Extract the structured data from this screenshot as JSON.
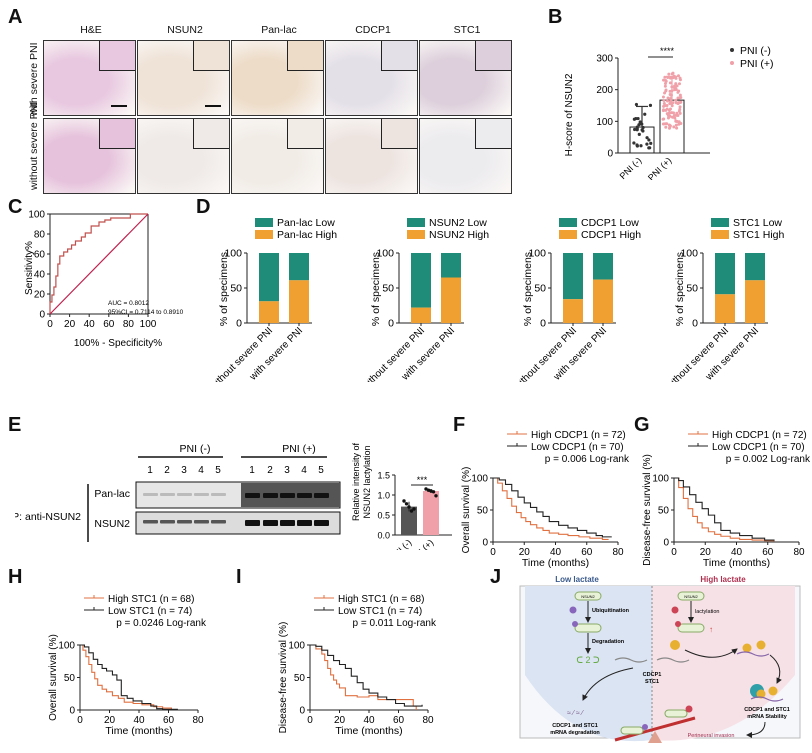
{
  "panels": {
    "A": {
      "letter": "A",
      "columns": [
        "H&E",
        "NSUN2",
        "Pan-lac",
        "CDCP1",
        "STC1"
      ],
      "rows": [
        "with severe PNI",
        "without severe PNI"
      ],
      "colors": {
        "he_row1": "#e8c8e0",
        "he_row2": "#e6c2dc",
        "ihc_row1": [
          "#efe2d6",
          "#eddcc8",
          "#e4e0e8",
          "#ddd0dc"
        ],
        "ihc_row2": [
          "#efeae8",
          "#f1ece6",
          "#ede4e0",
          "#ecebee"
        ]
      }
    },
    "B": {
      "letter": "B",
      "ylabel": "H-score of NSUN2",
      "significance": "****",
      "legend": [
        "PNI (-)",
        "PNI (+)"
      ]
    },
    "C": {
      "letter": "C",
      "ylabel": "Sensitivity%",
      "xlabel": "100% - Specificity%",
      "auc_text": "AUC = 0.8012",
      "ci_text": "95%CI = 0.7114 to 0.8910"
    },
    "D": {
      "letter": "D",
      "ylabel": "% of specimens"
    },
    "E": {
      "letter": "E",
      "group_neg": "PNI (-)",
      "group_pos": "PNI (+)",
      "lanes": [
        "1",
        "2",
        "3",
        "4",
        "5"
      ],
      "ip_label": "IP: anti-NSUN2",
      "row_labels": [
        "Pan-lac",
        "NSUN2"
      ],
      "bar_ylabel": [
        "Relative intensity of",
        "NSUN2 lactylation"
      ],
      "significance": "***"
    },
    "F": {
      "letter": "F",
      "ylabel": "Overall survival (%)",
      "xlabel": "Time (months)"
    },
    "G": {
      "letter": "G",
      "ylabel": "Disease-free survival (%)",
      "xlabel": "Time (months)"
    },
    "H": {
      "letter": "H",
      "ylabel": "Overall survival (%)",
      "xlabel": "Time (months)"
    },
    "I": {
      "letter": "I",
      "ylabel": "Disease-free survival (%)",
      "xlabel": "Time (months)"
    },
    "J": {
      "letter": "J",
      "left_title": "Low lactate",
      "right_title": "High lactate",
      "labels": {
        "nsun2": "NSUN2",
        "ubiquitination": "Ubiquitination",
        "degradation": "Degradation",
        "lactylation": "lactylation",
        "target": [
          "CDCP1",
          "STC1"
        ],
        "mrna_degradation": [
          "CDCP1 and STC1",
          "mRNA degradation"
        ],
        "mrna_stability": [
          "CDCP1 and STC1",
          "mRNA Stability"
        ],
        "perineural": "Perineural invasion"
      }
    }
  },
  "chart_data": [
    {
      "id": "B",
      "type": "bar",
      "title": "",
      "categories": [
        "PNI (-)",
        "PNI (+)"
      ],
      "values": [
        82,
        167
      ],
      "sd": [
        65,
        75
      ],
      "ylabel": "H-score of NSUN2",
      "ylim": [
        0,
        300
      ],
      "yticks": [
        0,
        100,
        200,
        300
      ],
      "colors": [
        "#333333",
        "#f0a0a8"
      ],
      "annotation": "****",
      "legend": [
        "PNI (-)",
        "PNI (+)"
      ],
      "legend_position": "top-right"
    },
    {
      "id": "C",
      "type": "line",
      "title": "",
      "xlabel": "100% - Specificity%",
      "ylabel": "Sensitivity%",
      "xlim": [
        0,
        100
      ],
      "ylim": [
        0,
        100
      ],
      "xticks": [
        0,
        20,
        40,
        60,
        80,
        100
      ],
      "yticks": [
        0,
        20,
        40,
        60,
        80,
        100
      ],
      "series": [
        {
          "name": "ROC",
          "x": [
            0,
            0,
            2,
            2,
            4,
            4,
            6,
            6,
            8,
            8,
            10,
            10,
            14,
            14,
            18,
            18,
            22,
            22,
            26,
            26,
            32,
            32,
            36,
            36,
            42,
            42,
            50,
            50,
            56,
            56,
            62,
            62,
            82,
            82,
            100
          ],
          "y": [
            0,
            12,
            12,
            19,
            19,
            27,
            27,
            38,
            38,
            50,
            50,
            58,
            58,
            62,
            62,
            65,
            65,
            69,
            69,
            73,
            73,
            77,
            77,
            81,
            81,
            88,
            88,
            92,
            92,
            94,
            94,
            96,
            96,
            100,
            100
          ],
          "color": "#c0504d"
        },
        {
          "name": "reference",
          "x": [
            0,
            100
          ],
          "y": [
            0,
            100
          ],
          "color": "#c0204d"
        }
      ],
      "annotations": [
        "AUC = 0.8012",
        "95%CI = 0.7114 to 0.8910"
      ]
    },
    {
      "id": "D1",
      "type": "bar",
      "stacked": true,
      "categories": [
        "without severe PNI",
        "with severe PNI"
      ],
      "series": [
        {
          "name": "Pan-lac High",
          "values": [
            31,
            61
          ],
          "color": "#f0a030"
        },
        {
          "name": "Pan-lac Low",
          "values": [
            69,
            39
          ],
          "color": "#1e8c78"
        }
      ],
      "ylabel": "% of specimens",
      "ylim": [
        0,
        100
      ],
      "yticks": [
        0,
        50,
        100
      ],
      "legend": [
        "Pan-lac Low",
        "Pan-lac High"
      ],
      "legend_position": "top"
    },
    {
      "id": "D2",
      "type": "bar",
      "stacked": true,
      "categories": [
        "without severe PNI",
        "with severe PNI"
      ],
      "series": [
        {
          "name": "NSUN2 High",
          "values": [
            22,
            65
          ],
          "color": "#f0a030"
        },
        {
          "name": "NSUN2 Low",
          "values": [
            78,
            35
          ],
          "color": "#1e8c78"
        }
      ],
      "ylabel": "% of specimens",
      "ylim": [
        0,
        100
      ],
      "yticks": [
        0,
        50,
        100
      ],
      "legend": [
        "NSUN2 Low",
        "NSUN2 High"
      ],
      "legend_position": "top"
    },
    {
      "id": "D3",
      "type": "bar",
      "stacked": true,
      "categories": [
        "without severe PNI",
        "with severe PNI"
      ],
      "series": [
        {
          "name": "CDCP1 High",
          "values": [
            34,
            62
          ],
          "color": "#f0a030"
        },
        {
          "name": "CDCP1 Low",
          "values": [
            66,
            38
          ],
          "color": "#1e8c78"
        }
      ],
      "ylabel": "% of specimens",
      "ylim": [
        0,
        100
      ],
      "yticks": [
        0,
        50,
        100
      ],
      "legend": [
        "CDCP1 Low",
        "CDCP1 High"
      ],
      "legend_position": "top"
    },
    {
      "id": "D4",
      "type": "bar",
      "stacked": true,
      "categories": [
        "without severe PNI",
        "with severe PNI"
      ],
      "series": [
        {
          "name": "STC1 High",
          "values": [
            41,
            61
          ],
          "color": "#f0a030"
        },
        {
          "name": "STC1 Low",
          "values": [
            59,
            39
          ],
          "color": "#1e8c78"
        }
      ],
      "ylabel": "% of specimens",
      "ylim": [
        0,
        100
      ],
      "yticks": [
        0,
        50,
        100
      ],
      "legend": [
        "STC1 Low",
        "STC1 High"
      ],
      "legend_position": "top"
    },
    {
      "id": "E",
      "type": "bar",
      "categories": [
        "PNI (-)",
        "PNI (+)"
      ],
      "values": [
        0.71,
        1.1
      ],
      "sd": [
        0.12,
        0.05
      ],
      "points": [
        [
          0.85,
          0.78,
          0.7,
          0.6,
          0.65
        ],
        [
          1.15,
          1.12,
          1.1,
          1.08,
          0.98
        ]
      ],
      "ylabel": "Relative intensity of NSUN2 lactylation",
      "ylim": [
        0,
        1.5
      ],
      "yticks": [
        0.0,
        0.5,
        1.0,
        1.5
      ],
      "colors": [
        "#555555",
        "#f0a0a8"
      ],
      "annotation": "***"
    },
    {
      "id": "F",
      "type": "line",
      "xlabel": "Time (months)",
      "ylabel": "Overall survival (%)",
      "xlim": [
        0,
        80
      ],
      "ylim": [
        0,
        100
      ],
      "xticks": [
        0,
        20,
        40,
        60,
        80
      ],
      "yticks": [
        0,
        50,
        100
      ],
      "series": [
        {
          "name": "High CDCP1 (n = 72)",
          "color": "#e07040",
          "x": [
            0,
            3,
            6,
            9,
            12,
            15,
            18,
            21,
            24,
            28,
            32,
            36,
            42,
            48,
            55,
            62,
            70,
            74
          ],
          "y": [
            100,
            92,
            80,
            68,
            56,
            46,
            38,
            32,
            27,
            22,
            18,
            14,
            12,
            10,
            8,
            6,
            4,
            4
          ]
        },
        {
          "name": "Low CDCP1 (n = 70)",
          "color": "#222222",
          "x": [
            0,
            4,
            8,
            12,
            16,
            20,
            24,
            28,
            32,
            36,
            42,
            48,
            54,
            60,
            66,
            70,
            76
          ],
          "y": [
            100,
            97,
            90,
            80,
            70,
            61,
            54,
            47,
            40,
            32,
            26,
            22,
            18,
            14,
            10,
            8,
            8
          ]
        }
      ],
      "legend": [
        "High CDCP1 (n = 72)",
        "Low CDCP1 (n = 70)"
      ],
      "annotation": "p = 0.006 Log-rank"
    },
    {
      "id": "G",
      "type": "line",
      "xlabel": "Time (months)",
      "ylabel": "Disease-free survival (%)",
      "xlim": [
        0,
        80
      ],
      "ylim": [
        0,
        100
      ],
      "xticks": [
        0,
        20,
        40,
        60,
        80
      ],
      "yticks": [
        0,
        50,
        100
      ],
      "series": [
        {
          "name": "High CDCP1 (n = 72)",
          "color": "#e07040",
          "x": [
            0,
            3,
            6,
            9,
            12,
            15,
            18,
            22,
            26,
            30,
            36,
            42,
            50,
            58,
            64
          ],
          "y": [
            100,
            85,
            68,
            52,
            40,
            30,
            22,
            16,
            12,
            9,
            6,
            4,
            3,
            2,
            1
          ]
        },
        {
          "name": "Low CDCP1 (n = 70)",
          "color": "#222222",
          "x": [
            0,
            3,
            6,
            10,
            14,
            18,
            22,
            26,
            30,
            36,
            42,
            50,
            58,
            64
          ],
          "y": [
            100,
            96,
            86,
            74,
            62,
            52,
            42,
            30,
            18,
            14,
            10,
            6,
            3,
            2
          ]
        }
      ],
      "legend": [
        "High CDCP1 (n = 72)",
        "Low CDCP1 (n = 70)"
      ],
      "annotation": "p = 0.002 Log-rank"
    },
    {
      "id": "H",
      "type": "line",
      "xlabel": "Time (months)",
      "ylabel": "Overall survival (%)",
      "xlim": [
        0,
        80
      ],
      "ylim": [
        0,
        100
      ],
      "xticks": [
        0,
        20,
        40,
        60,
        80
      ],
      "yticks": [
        0,
        50,
        100
      ],
      "series": [
        {
          "name": "High STC1 (n = 68)",
          "color": "#e07040",
          "x": [
            0,
            2,
            4,
            6,
            8,
            10,
            12,
            15,
            18,
            22,
            26,
            30,
            36,
            42,
            50,
            56,
            62
          ],
          "y": [
            100,
            92,
            82,
            70,
            58,
            48,
            38,
            32,
            28,
            22,
            18,
            12,
            10,
            8,
            5,
            3,
            1
          ]
        },
        {
          "name": "Low STC1 (n = 74)",
          "color": "#222222",
          "x": [
            0,
            3,
            6,
            9,
            12,
            15,
            18,
            22,
            25,
            28,
            32,
            36,
            42,
            48,
            52,
            56,
            66
          ],
          "y": [
            100,
            97,
            88,
            78,
            70,
            64,
            60,
            54,
            46,
            22,
            18,
            14,
            10,
            6,
            2,
            1,
            0
          ]
        }
      ],
      "legend": [
        "High STC1 (n = 68)",
        "Low STC1 (n = 74)"
      ],
      "annotation": "p = 0.0246 Log-rank"
    },
    {
      "id": "I",
      "type": "line",
      "xlabel": "Time (months)",
      "ylabel": "Disease-free survival (%)",
      "xlim": [
        0,
        80
      ],
      "ylim": [
        0,
        100
      ],
      "xticks": [
        0,
        20,
        40,
        60,
        80
      ],
      "yticks": [
        0,
        50,
        100
      ],
      "series": [
        {
          "name": "High STC1 (n = 68)",
          "color": "#e07040",
          "x": [
            0,
            4,
            8,
            10,
            12,
            14,
            16,
            18,
            20,
            24,
            28,
            32,
            40,
            46,
            55,
            62,
            68,
            70,
            72
          ],
          "y": [
            100,
            94,
            86,
            76,
            64,
            54,
            46,
            40,
            34,
            22,
            22,
            20,
            22,
            16,
            16,
            16,
            16,
            6,
            0
          ]
        },
        {
          "name": "Low STC1 (n = 74)",
          "color": "#222222",
          "x": [
            0,
            4,
            8,
            12,
            16,
            20,
            24,
            28,
            32,
            36,
            40,
            46,
            52,
            58,
            64,
            70,
            76
          ],
          "y": [
            100,
            98,
            92,
            84,
            76,
            70,
            64,
            52,
            42,
            32,
            26,
            20,
            16,
            10,
            6,
            6,
            8
          ]
        }
      ],
      "legend": [
        "High STC1 (n = 68)",
        "Low STC1 (n = 74)"
      ],
      "annotation": "p = 0.011 Log-rank"
    }
  ]
}
